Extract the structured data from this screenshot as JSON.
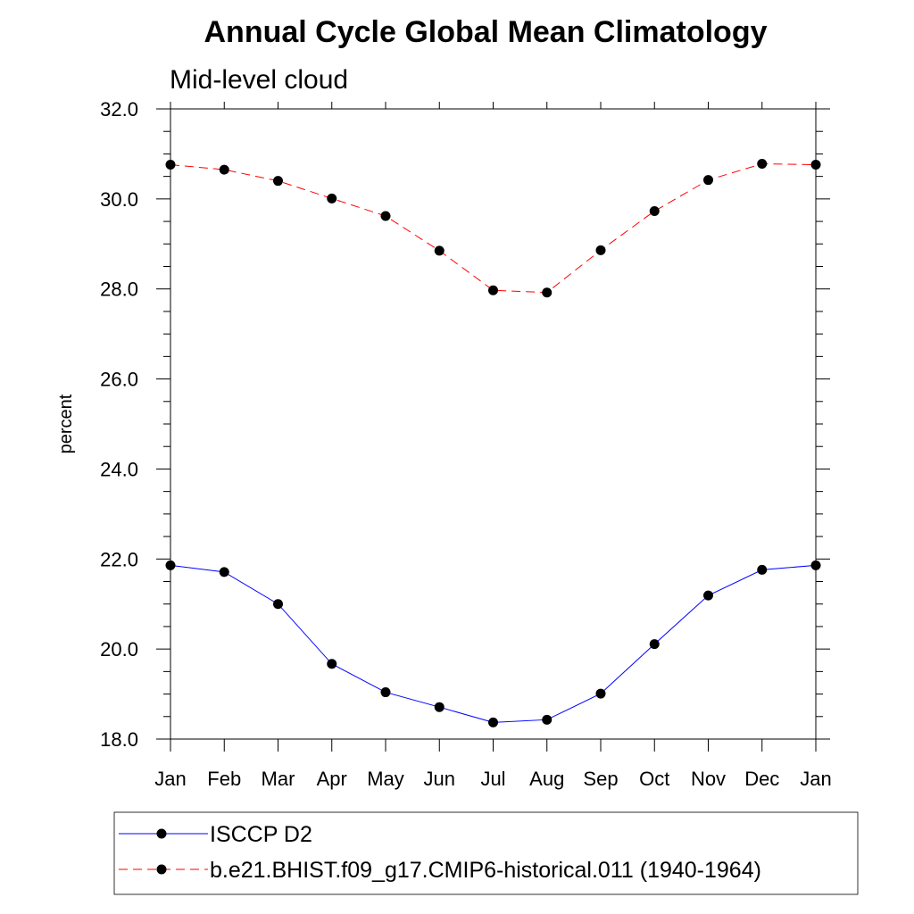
{
  "chart_data": {
    "type": "line",
    "title": "Annual Cycle Global Mean Climatology",
    "subtitle": "Mid-level cloud",
    "xlabel": "",
    "ylabel": "percent",
    "categories": [
      "Jan",
      "Feb",
      "Mar",
      "Apr",
      "May",
      "Jun",
      "Jul",
      "Aug",
      "Sep",
      "Oct",
      "Nov",
      "Dec",
      "Jan"
    ],
    "ylim": [
      18.0,
      32.0
    ],
    "yticks": [
      "18.0",
      "20.0",
      "22.0",
      "24.0",
      "26.0",
      "28.0",
      "30.0"
    ],
    "yticks_top": "32.0",
    "series": [
      {
        "name": "ISCCP D2",
        "color": "#0000ff",
        "line_style": "solid",
        "marker": "filled-circle",
        "values": [
          21.86,
          21.71,
          21.0,
          19.67,
          19.04,
          18.71,
          18.37,
          18.43,
          19.01,
          20.11,
          21.19,
          21.76,
          21.86
        ]
      },
      {
        "name": "b.e21.BHIST.f09_g17.CMIP6-historical.011 (1940-1964)",
        "color": "#ff0000",
        "line_style": "dashed",
        "marker": "filled-circle",
        "values": [
          30.76,
          30.65,
          30.4,
          30.01,
          29.62,
          28.85,
          27.97,
          27.92,
          28.86,
          29.73,
          30.42,
          30.78,
          30.76
        ]
      }
    ],
    "legend_position": "bottom",
    "grid": false
  }
}
